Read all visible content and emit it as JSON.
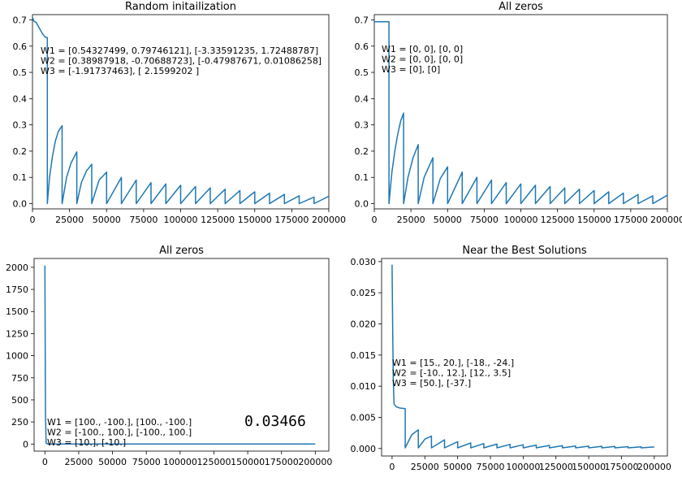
{
  "chart_data": [
    {
      "type": "line",
      "title": "Random initailization",
      "xlim": [
        0,
        200000
      ],
      "ylim": [
        -0.02,
        0.72
      ],
      "xticks": [
        0,
        25000,
        50000,
        75000,
        100000,
        125000,
        150000,
        175000,
        200000
      ],
      "yticks": [
        0.0,
        0.1,
        0.2,
        0.3,
        0.4,
        0.5,
        0.6,
        0.7
      ],
      "ytick_labels": [
        "0.0",
        "0.1",
        "0.2",
        "0.3",
        "0.4",
        "0.5",
        "0.6",
        "0.7"
      ],
      "annotation": [
        "W1 = [0.54327499, 0.79746121], [-3.33591235, 1.72488787]",
        "W2 = [0.38987918, -0.70688723], [-0.47987671, 0.01086258]",
        "W3 = [-1.91737463], [ 2.1599202 ]"
      ],
      "color": "#1f77b4",
      "points": [
        [
          0,
          0.71
        ],
        [
          1000,
          0.695
        ],
        [
          2500,
          0.69
        ],
        [
          4000,
          0.675
        ],
        [
          5500,
          0.66
        ],
        [
          7000,
          0.645
        ],
        [
          8500,
          0.635
        ],
        [
          10000,
          0.632
        ],
        [
          10000,
          0.0
        ],
        [
          11500,
          0.1
        ],
        [
          13500,
          0.18
        ],
        [
          15500,
          0.24
        ],
        [
          17500,
          0.275
        ],
        [
          20000,
          0.297
        ],
        [
          20000,
          0.0
        ],
        [
          23000,
          0.1
        ],
        [
          26000,
          0.155
        ],
        [
          29900,
          0.197
        ],
        [
          29900,
          0.0
        ],
        [
          33000,
          0.08
        ],
        [
          36500,
          0.125
        ],
        [
          40000,
          0.15
        ],
        [
          40000,
          0.0
        ],
        [
          45000,
          0.09
        ],
        [
          50000,
          0.12
        ],
        [
          50000,
          0.0
        ],
        [
          60000,
          0.1
        ],
        [
          60000,
          0.0
        ],
        [
          70000,
          0.09
        ],
        [
          70000,
          0.0
        ],
        [
          80000,
          0.08
        ],
        [
          80000,
          0.0
        ],
        [
          90000,
          0.075
        ],
        [
          90000,
          0.0
        ],
        [
          100000,
          0.07
        ],
        [
          100000,
          0.0
        ],
        [
          110000,
          0.065
        ],
        [
          110000,
          0.0
        ],
        [
          120000,
          0.06
        ],
        [
          120000,
          0.0
        ],
        [
          130000,
          0.055
        ],
        [
          130000,
          0.0
        ],
        [
          140000,
          0.05
        ],
        [
          140000,
          0.0
        ],
        [
          150000,
          0.045
        ],
        [
          150000,
          0.0
        ],
        [
          160000,
          0.04
        ],
        [
          160000,
          0.0
        ],
        [
          170000,
          0.035
        ],
        [
          170000,
          0.0
        ],
        [
          180000,
          0.03
        ],
        [
          180000,
          0.0
        ],
        [
          190000,
          0.025
        ],
        [
          190000,
          0.0
        ],
        [
          200000,
          0.028
        ]
      ]
    },
    {
      "type": "line",
      "title": "All zeros",
      "xlim": [
        0,
        200000
      ],
      "ylim": [
        -0.02,
        0.72
      ],
      "xticks": [
        0,
        25000,
        50000,
        75000,
        100000,
        125000,
        150000,
        175000,
        200000
      ],
      "yticks": [
        0.0,
        0.1,
        0.2,
        0.3,
        0.4,
        0.5,
        0.6,
        0.7
      ],
      "ytick_labels": [
        "0.0",
        "0.1",
        "0.2",
        "0.3",
        "0.4",
        "0.5",
        "0.6",
        "0.7"
      ],
      "annotation": [
        "W1 = [0, 0], [0, 0]",
        "W2 = [0, 0], [0, 0]",
        "W3 = [0], [0]"
      ],
      "color": "#1f77b4",
      "points": [
        [
          0,
          0.693
        ],
        [
          10000,
          0.693
        ],
        [
          10000,
          0.0
        ],
        [
          12000,
          0.12
        ],
        [
          14000,
          0.2
        ],
        [
          16000,
          0.265
        ],
        [
          18000,
          0.315
        ],
        [
          20000,
          0.345
        ],
        [
          20000,
          0.0
        ],
        [
          23000,
          0.1
        ],
        [
          26500,
          0.175
        ],
        [
          30000,
          0.225
        ],
        [
          30000,
          0.0
        ],
        [
          34000,
          0.1
        ],
        [
          40000,
          0.175
        ],
        [
          40000,
          0.0
        ],
        [
          45000,
          0.095
        ],
        [
          50000,
          0.14
        ],
        [
          50000,
          0.0
        ],
        [
          60000,
          0.12
        ],
        [
          60000,
          0.0
        ],
        [
          70000,
          0.1
        ],
        [
          70000,
          0.0
        ],
        [
          80000,
          0.09
        ],
        [
          80000,
          0.0
        ],
        [
          90000,
          0.08
        ],
        [
          90000,
          0.0
        ],
        [
          100000,
          0.075
        ],
        [
          100000,
          0.0
        ],
        [
          110000,
          0.07
        ],
        [
          110000,
          0.0
        ],
        [
          120000,
          0.065
        ],
        [
          120000,
          0.0
        ],
        [
          130000,
          0.06
        ],
        [
          130000,
          0.0
        ],
        [
          140000,
          0.055
        ],
        [
          140000,
          0.0
        ],
        [
          150000,
          0.05
        ],
        [
          150000,
          0.0
        ],
        [
          160000,
          0.045
        ],
        [
          160000,
          0.0
        ],
        [
          170000,
          0.04
        ],
        [
          170000,
          0.0
        ],
        [
          180000,
          0.035
        ],
        [
          180000,
          0.0
        ],
        [
          190000,
          0.03
        ],
        [
          190000,
          0.0
        ],
        [
          200000,
          0.032
        ]
      ]
    },
    {
      "type": "line",
      "title": "All zeros",
      "xlim": [
        -8000,
        210000
      ],
      "ylim": [
        -80,
        2100
      ],
      "xticks": [
        0,
        25000,
        50000,
        75000,
        100000,
        125000,
        150000,
        175000,
        200000
      ],
      "yticks": [
        0,
        250,
        500,
        750,
        1000,
        1250,
        1500,
        1750,
        2000
      ],
      "ytick_labels": [
        "0",
        "250",
        "500",
        "750",
        "1000",
        "1250",
        "1500",
        "1750",
        "2000"
      ],
      "annotation": [
        "W1 = [100., -100.], [100., -100.]",
        "W2 = [-100., 100.], [-100., 100.]",
        "W3 = [10.], [-10.]"
      ],
      "overlay_value": "0.03466",
      "color": "#1f77b4",
      "points": [
        [
          0,
          2020
        ],
        [
          400,
          350
        ],
        [
          900,
          10
        ],
        [
          2000,
          1
        ],
        [
          200000,
          1
        ]
      ]
    },
    {
      "type": "line",
      "title": "Near the Best Solutions",
      "xlim": [
        -8000,
        210000
      ],
      "ylim": [
        -0.0012,
        0.0305
      ],
      "xticks": [
        0,
        25000,
        50000,
        75000,
        100000,
        125000,
        150000,
        175000,
        200000
      ],
      "yticks": [
        0.0,
        0.005,
        0.01,
        0.015,
        0.02,
        0.025,
        0.03
      ],
      "ytick_labels": [
        "0.000",
        "0.005",
        "0.010",
        "0.015",
        "0.020",
        "0.025",
        "0.030"
      ],
      "annotation": [
        "W1 = [15., 20.], [-18., -24.]",
        "W2 = [-10., 12.], [12., 3.5]",
        "W3 = [50.], [-37.]"
      ],
      "color": "#1f77b4",
      "points": [
        [
          0,
          0.0295
        ],
        [
          400,
          0.02
        ],
        [
          900,
          0.011
        ],
        [
          1500,
          0.0072
        ],
        [
          3000,
          0.0067
        ],
        [
          6000,
          0.0065
        ],
        [
          10000,
          0.0064
        ],
        [
          10000,
          0.0001
        ],
        [
          15000,
          0.0022
        ],
        [
          20000,
          0.003
        ],
        [
          20000,
          0.0001
        ],
        [
          25000,
          0.0015
        ],
        [
          30000,
          0.002
        ],
        [
          30000,
          0.0001
        ],
        [
          40000,
          0.0014
        ],
        [
          40000,
          0.0001
        ],
        [
          50000,
          0.0011
        ],
        [
          50000,
          0.0001
        ],
        [
          60000,
          0.0009
        ],
        [
          60000,
          0.0001
        ],
        [
          70000,
          0.0008
        ],
        [
          70000,
          0.0001
        ],
        [
          80000,
          0.0007
        ],
        [
          80000,
          0.0001
        ],
        [
          90000,
          0.00065
        ],
        [
          90000,
          0.0001
        ],
        [
          100000,
          0.0006
        ],
        [
          100000,
          0.0001
        ],
        [
          110000,
          0.00055
        ],
        [
          110000,
          0.0001
        ],
        [
          120000,
          0.0005
        ],
        [
          120000,
          0.0001
        ],
        [
          130000,
          0.00045
        ],
        [
          130000,
          0.0001
        ],
        [
          140000,
          0.0004
        ],
        [
          140000,
          0.0001
        ],
        [
          150000,
          0.00038
        ],
        [
          150000,
          0.0001
        ],
        [
          160000,
          0.00035
        ],
        [
          160000,
          0.0001
        ],
        [
          170000,
          0.00032
        ],
        [
          170000,
          0.0001
        ],
        [
          180000,
          0.0003
        ],
        [
          180000,
          0.0001
        ],
        [
          190000,
          0.00028
        ],
        [
          190000,
          0.0001
        ],
        [
          200000,
          0.00025
        ]
      ]
    }
  ]
}
